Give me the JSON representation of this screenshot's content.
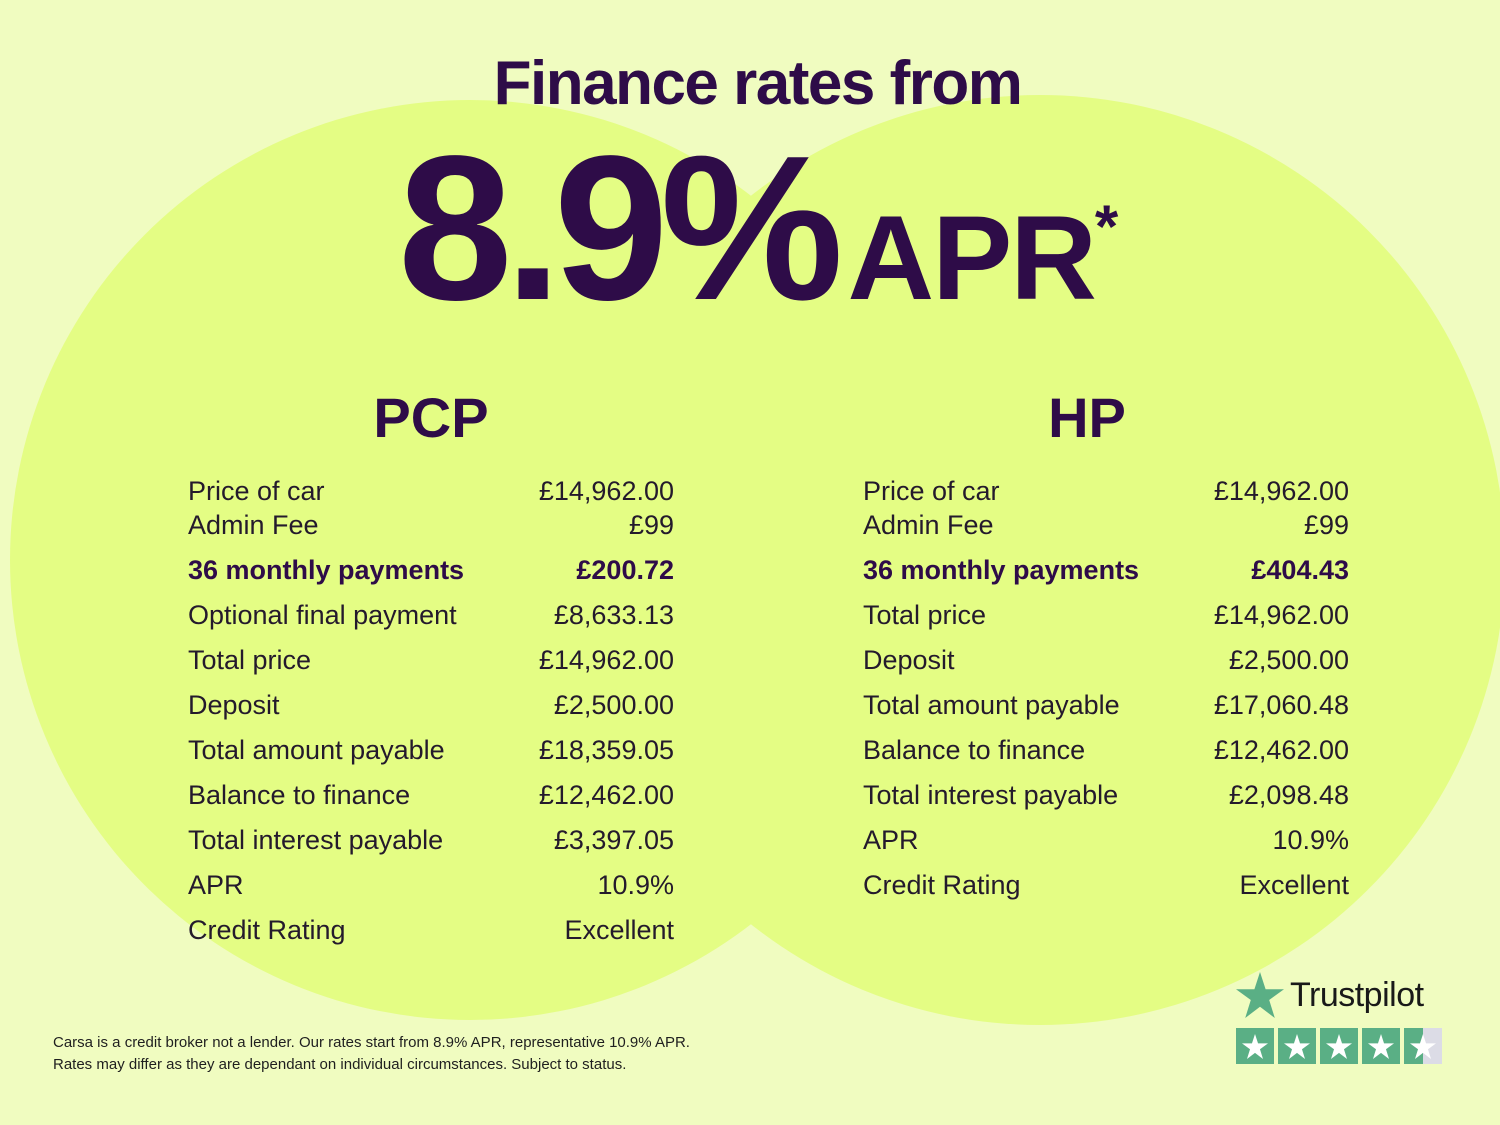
{
  "title": "Finance rates from",
  "hero": {
    "rate": "8.9%",
    "apr_label": "APR",
    "asterisk": "*"
  },
  "pcp": {
    "heading": "PCP",
    "rows": [
      {
        "label": "Price of car",
        "value": "£14,962.00"
      },
      {
        "label": "Admin Fee",
        "value": "£99"
      },
      {
        "label": "36 monthly payments",
        "value": "£200.72"
      },
      {
        "label": "Optional final payment",
        "value": "£8,633.13"
      },
      {
        "label": "Total price",
        "value": "£14,962.00"
      },
      {
        "label": "Deposit",
        "value": "£2,500.00"
      },
      {
        "label": "Total amount payable",
        "value": "£18,359.05"
      },
      {
        "label": "Balance to finance",
        "value": "£12,462.00"
      },
      {
        "label": "Total interest payable",
        "value": "£3,397.05"
      },
      {
        "label": "APR",
        "value": "10.9%"
      },
      {
        "label": "Credit Rating",
        "value": "Excellent"
      }
    ]
  },
  "hp": {
    "heading": "HP",
    "rows": [
      {
        "label": "Price of car",
        "value": "£14,962.00"
      },
      {
        "label": "Admin Fee",
        "value": "£99"
      },
      {
        "label": "36 monthly payments",
        "value": "£404.43"
      },
      {
        "label": "Total price",
        "value": "£14,962.00"
      },
      {
        "label": "Deposit",
        "value": "£2,500.00"
      },
      {
        "label": "Total amount payable",
        "value": "£17,060.48"
      },
      {
        "label": "Balance to finance",
        "value": "£12,462.00"
      },
      {
        "label": "Total interest payable",
        "value": "£2,098.48"
      },
      {
        "label": "APR",
        "value": "10.9%"
      },
      {
        "label": "Credit Rating",
        "value": "Excellent"
      }
    ]
  },
  "footer": {
    "line1": "Carsa is a credit broker not a lender. Our rates start from 8.9% APR, representative 10.9% APR.",
    "line2": "Rates may differ as they are dependant on individual circumstances. Subject to status."
  },
  "trustpilot": {
    "name": "Trustpilot",
    "rating": 4.5,
    "max": 5,
    "icon": "star-icon",
    "color": "#5aaf85"
  },
  "colors": {
    "background": "#f0fcc0",
    "circle": "#e4fd84",
    "accent": "#2e0c48"
  }
}
